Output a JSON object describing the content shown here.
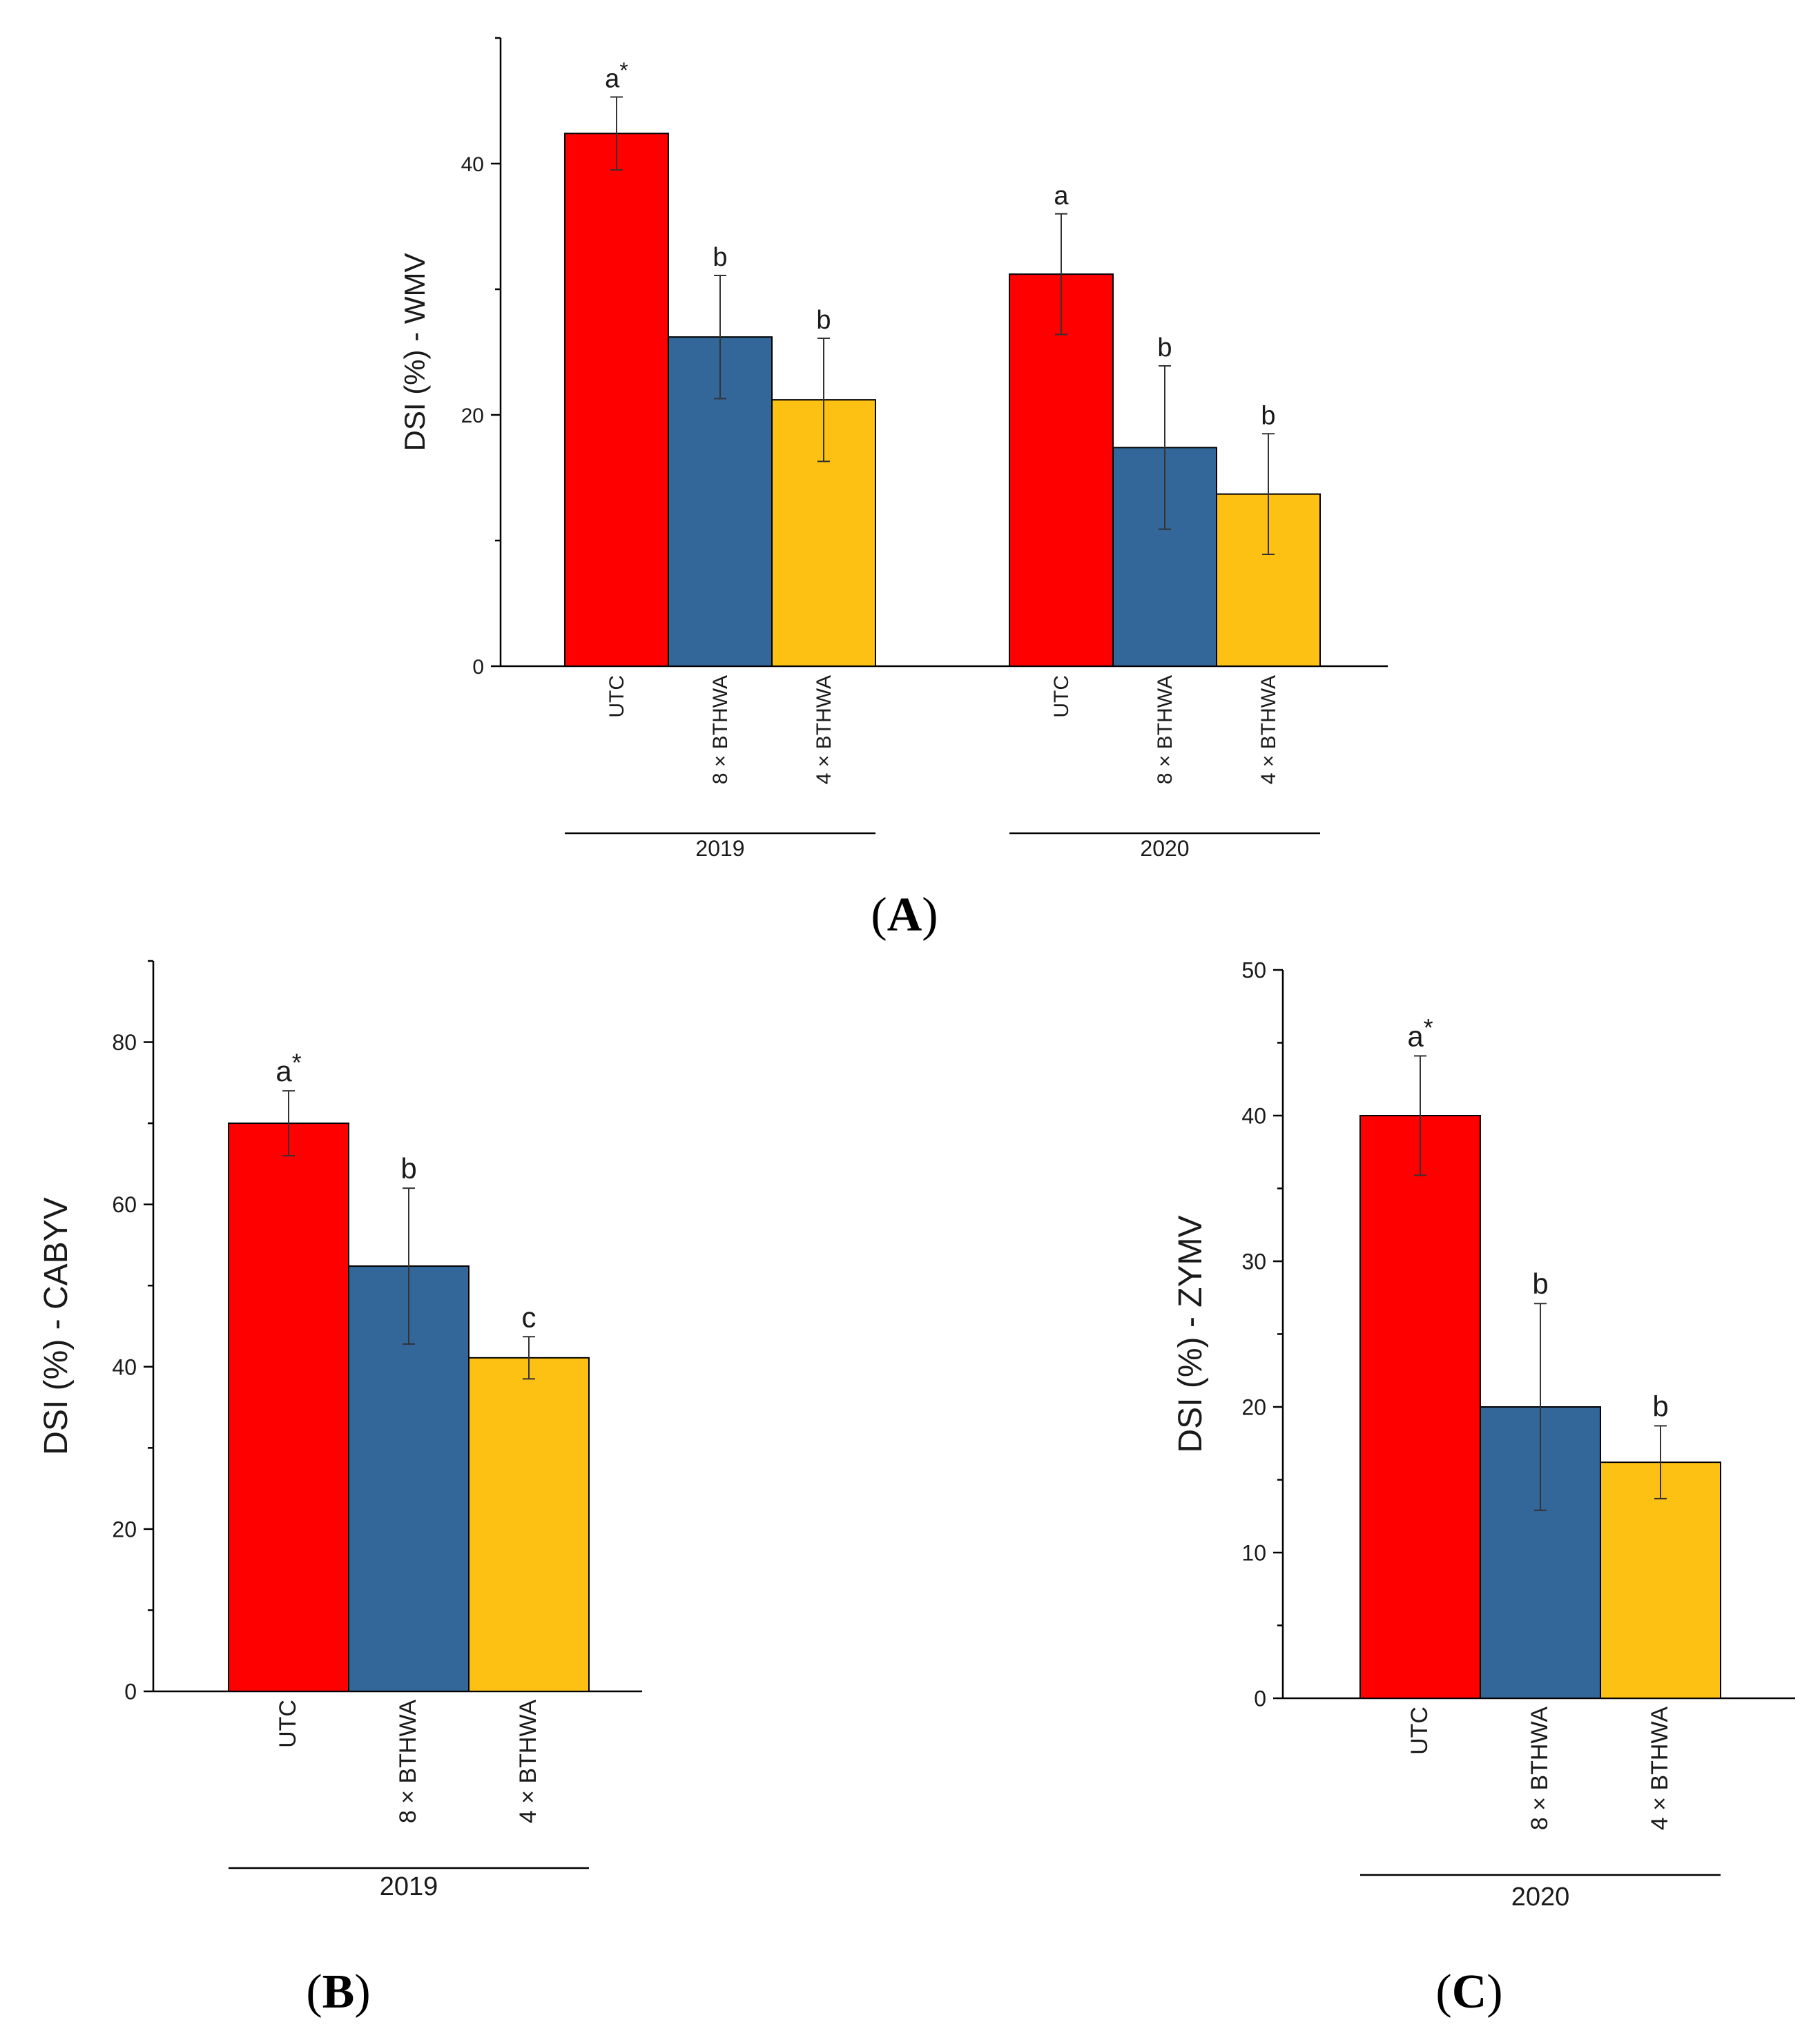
{
  "colors": {
    "UTC": "#ff0000",
    "8 × BTHWA": "#336699",
    "4 × BTHWA": "#fdc114",
    "axis": "#000000",
    "errorbar": "#333333"
  },
  "chart_data": [
    {
      "panel": "A",
      "type": "bar",
      "ylabel": "DSI (%) - WMV",
      "ylim": [
        0,
        50
      ],
      "yticks": [
        0,
        20,
        40
      ],
      "categories": [
        "UTC",
        "8 × BTHWA",
        "4 × BTHWA"
      ],
      "groups": [
        {
          "label": "2019",
          "bars": [
            {
              "category": "UTC",
              "value": 42.4,
              "error": 2.9,
              "letter": "a",
              "star": "*"
            },
            {
              "category": "8 × BTHWA",
              "value": 26.2,
              "error": 4.9,
              "letter": "b",
              "star": ""
            },
            {
              "category": "4 × BTHWA",
              "value": 21.2,
              "error": 4.9,
              "letter": "b",
              "star": ""
            }
          ]
        },
        {
          "label": "2020",
          "bars": [
            {
              "category": "UTC",
              "value": 31.2,
              "error": 4.8,
              "letter": "a",
              "star": ""
            },
            {
              "category": "8 × BTHWA",
              "value": 17.4,
              "error": 6.5,
              "letter": "b",
              "star": ""
            },
            {
              "category": "4 × BTHWA",
              "value": 13.7,
              "error": 4.8,
              "letter": "b",
              "star": ""
            }
          ]
        }
      ]
    },
    {
      "panel": "B",
      "type": "bar",
      "ylabel": "DSI (%) - CABYV",
      "ylim": [
        0,
        90
      ],
      "yticks": [
        0,
        20,
        40,
        60,
        80
      ],
      "categories": [
        "UTC",
        "8 × BTHWA",
        "4 × BTHWA"
      ],
      "groups": [
        {
          "label": "2019",
          "bars": [
            {
              "category": "UTC",
              "value": 70.0,
              "error": 4.0,
              "letter": "a",
              "star": "*"
            },
            {
              "category": "8 × BTHWA",
              "value": 52.4,
              "error": 9.6,
              "letter": "b",
              "star": ""
            },
            {
              "category": "4 × BTHWA",
              "value": 41.1,
              "error": 2.6,
              "letter": "c",
              "star": ""
            }
          ]
        }
      ]
    },
    {
      "panel": "C",
      "type": "bar",
      "ylabel": "DSI (%) - ZYMV",
      "ylim": [
        0,
        50
      ],
      "yticks": [
        0,
        10,
        20,
        30,
        40,
        50
      ],
      "categories": [
        "UTC",
        "8 × BTHWA",
        "4 × BTHWA"
      ],
      "groups": [
        {
          "label": "2020",
          "bars": [
            {
              "category": "UTC",
              "value": 40.0,
              "error": 4.1,
              "letter": "a",
              "star": "*"
            },
            {
              "category": "8 × BTHWA",
              "value": 20.0,
              "error": 7.1,
              "letter": "b",
              "star": ""
            },
            {
              "category": "4 × BTHWA",
              "value": 16.2,
              "error": 2.5,
              "letter": "b",
              "star": ""
            }
          ]
        }
      ]
    }
  ],
  "panel_labels": {
    "A": {
      "open": "(",
      "letter": "A",
      "close": ")"
    },
    "B": {
      "open": "(",
      "letter": "B",
      "close": ")"
    },
    "C": {
      "open": "(",
      "letter": "C",
      "close": ")"
    }
  }
}
